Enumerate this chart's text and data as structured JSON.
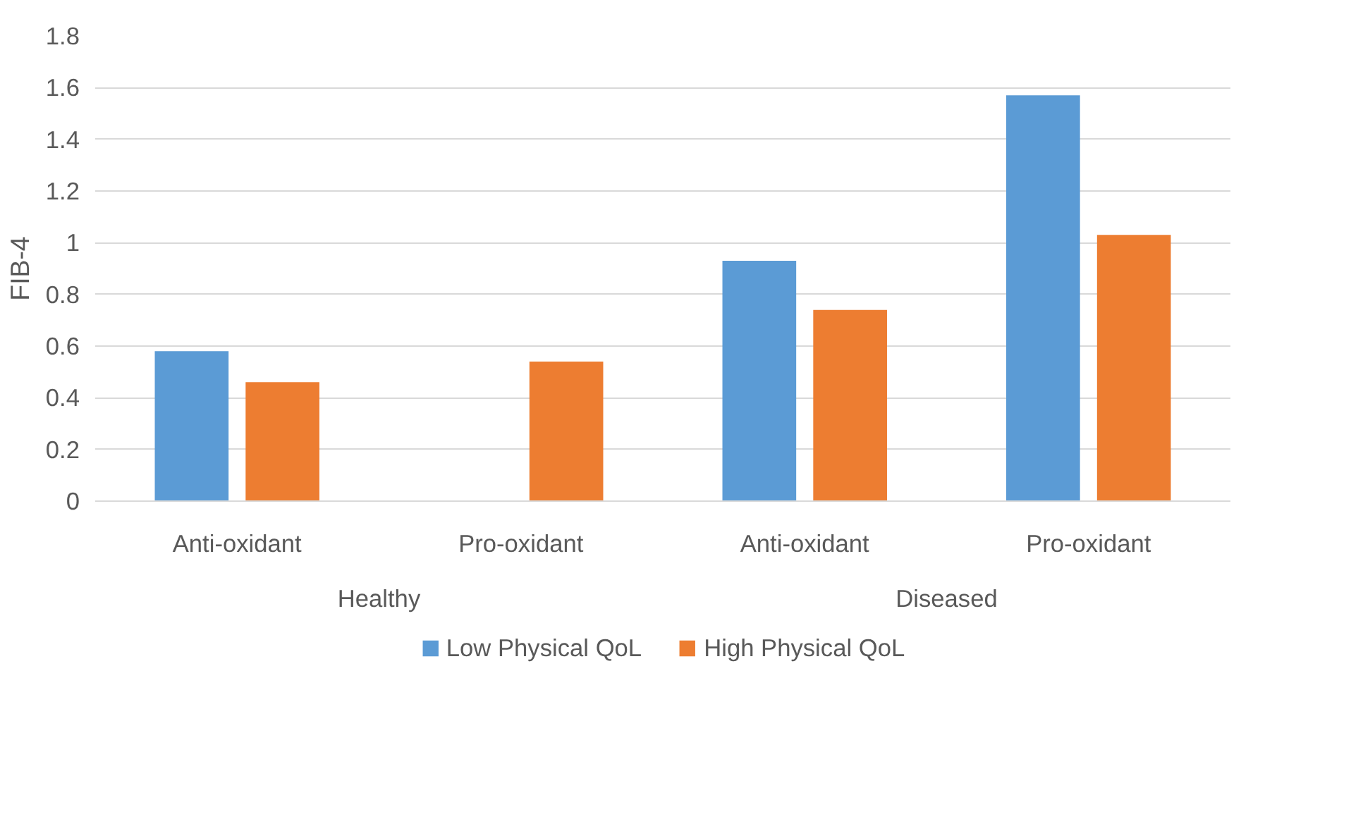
{
  "chart_data": {
    "type": "bar",
    "ylabel": "FIB-4",
    "categories": [
      "Anti-oxidant",
      "Pro-oxidant",
      "Anti-oxidant",
      "Pro-oxidant"
    ],
    "annotations": [
      "Healthy",
      "Diseased"
    ],
    "series": [
      {
        "name": "Low Physical QoL",
        "color": "#5b9bd5",
        "values": [
          0.58,
          null,
          0.93,
          1.57
        ]
      },
      {
        "name": "High Physical QoL",
        "color": "#ed7d31",
        "values": [
          0.46,
          0.54,
          0.74,
          1.03
        ]
      }
    ],
    "ylim": [
      0,
      1.8
    ],
    "yticks": [
      0,
      0.2,
      0.4,
      0.6,
      0.8,
      1,
      1.2,
      1.4,
      1.6,
      1.8
    ],
    "grid": "y",
    "legend": "bottom"
  }
}
